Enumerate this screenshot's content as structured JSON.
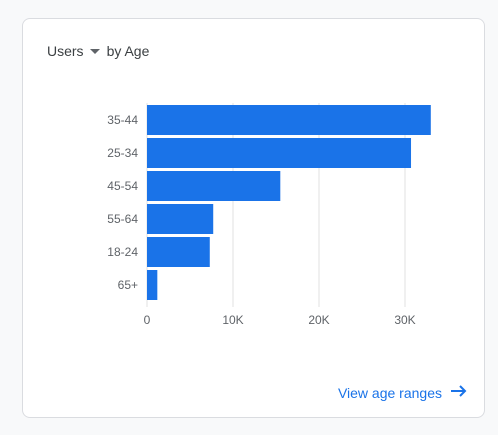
{
  "card": {
    "metric_label": "Users",
    "dimension_label": "by Age",
    "link_label": "View age ranges"
  },
  "colors": {
    "bar": "#1a73e8",
    "grid": "#e0e0e0",
    "text": "#5f6368",
    "link": "#1a73e8"
  },
  "chart_data": {
    "type": "bar",
    "orientation": "horizontal",
    "categories": [
      "35-44",
      "25-34",
      "45-54",
      "55-64",
      "18-24",
      "65+"
    ],
    "values": [
      33000,
      30700,
      15500,
      7700,
      7300,
      1200
    ],
    "xlim": [
      0,
      35000
    ],
    "x_ticks": [
      0,
      10000,
      20000,
      30000
    ],
    "x_tick_labels": [
      "0",
      "10K",
      "20K",
      "30K"
    ],
    "grid": true
  }
}
